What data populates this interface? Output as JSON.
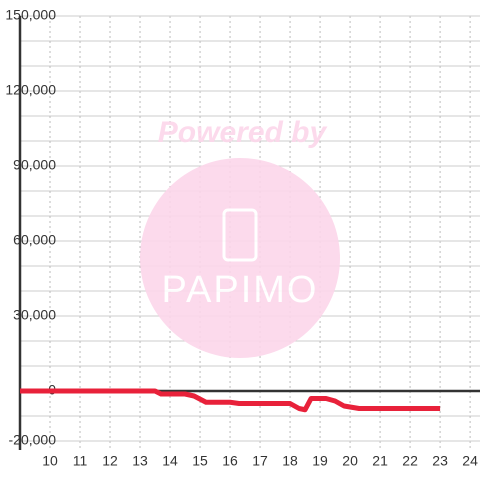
{
  "chart_data": {
    "type": "line",
    "watermark": {
      "top": "Powered by",
      "logo": "PAPIMO"
    },
    "x": [
      9,
      13.5,
      13.7,
      14.5,
      14.8,
      15.2,
      16,
      16.3,
      18,
      18.3,
      18.5,
      18.7,
      19.2,
      19.5,
      19.8,
      20.3,
      23
    ],
    "series": [
      {
        "color": "#e8213a",
        "values": [
          0,
          0,
          -1200,
          -1200,
          -2000,
          -4500,
          -4500,
          -5000,
          -5000,
          -7000,
          -7500,
          -3000,
          -3000,
          -4000,
          -6000,
          -7000,
          -7000
        ]
      }
    ],
    "xlim": [
      9,
      24.33
    ],
    "xticks": [
      10,
      11,
      12,
      13,
      14,
      15,
      16,
      17,
      18,
      19,
      20,
      21,
      22,
      23,
      24
    ],
    "ylim": [
      -20000,
      150000
    ],
    "yticks": [
      {
        "value": -20000,
        "label": "-20,000"
      },
      0,
      {
        "value": 30000,
        "label": "30,000"
      },
      {
        "value": 60000,
        "label": "60,000"
      },
      {
        "value": 90000,
        "label": "90,000"
      },
      {
        "value": 120000,
        "label": "120,000"
      },
      {
        "value": 150000,
        "label": "150,000"
      }
    ],
    "minor_yticks": [
      -10000,
      10000,
      20000,
      40000,
      50000,
      70000,
      80000,
      100000,
      110000,
      130000,
      140000
    ],
    "grid": true
  }
}
